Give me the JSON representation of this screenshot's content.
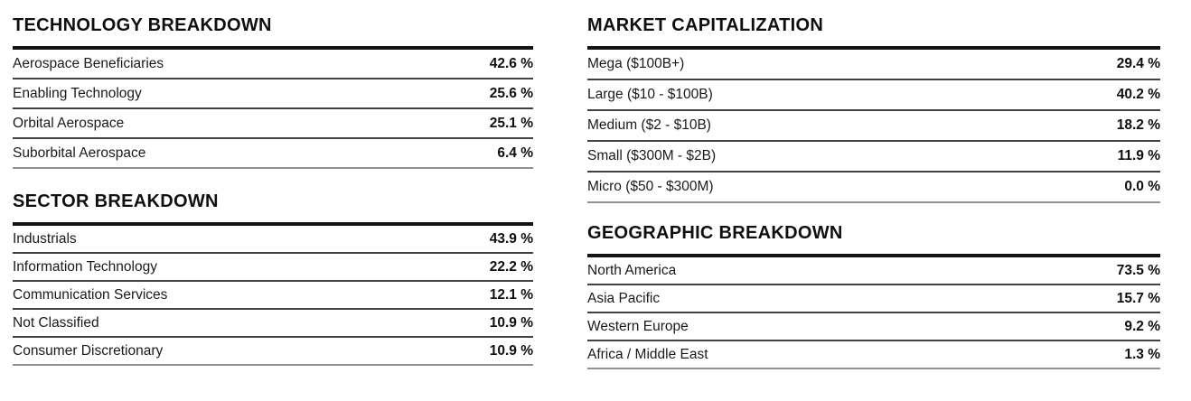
{
  "colors": {
    "background": "#ffffff",
    "title_text": "#0f0f0f",
    "heavy_rule": "#141414",
    "row_rule": "#424242",
    "end_rule": "#909090"
  },
  "tables": [
    {
      "id": "technology-breakdown",
      "title": "TECHNOLOGY BREAKDOWN",
      "rows": [
        {
          "label": "Aerospace Beneficiaries",
          "value": "42.6 %"
        },
        {
          "label": "Enabling Technology",
          "value": "25.6 %"
        },
        {
          "label": "Orbital Aerospace",
          "value": "25.1 %"
        },
        {
          "label": "Suborbital Aerospace",
          "value": "6.4 %"
        }
      ]
    },
    {
      "id": "sector-breakdown",
      "title": "SECTOR BREAKDOWN",
      "rows": [
        {
          "label": "Industrials",
          "value": "43.9 %"
        },
        {
          "label": "Information Technology",
          "value": "22.2 %"
        },
        {
          "label": "Communication Services",
          "value": "12.1 %"
        },
        {
          "label": "Not Classified",
          "value": "10.9 %"
        },
        {
          "label": "Consumer Discretionary",
          "value": "10.9 %"
        }
      ]
    },
    {
      "id": "market-capitalization",
      "title": "MARKET CAPITALIZATION",
      "rows": [
        {
          "label": "Mega ($100B+)",
          "value": "29.4 %"
        },
        {
          "label": "Large ($10 - $100B)",
          "value": "40.2 %"
        },
        {
          "label": "Medium ($2 - $10B)",
          "value": "18.2 %"
        },
        {
          "label": "Small ($300M - $2B)",
          "value": "11.9 %"
        },
        {
          "label": "Micro ($50 - $300M)",
          "value": "0.0 %"
        }
      ]
    },
    {
      "id": "geographic-breakdown",
      "title": "GEOGRAPHIC BREAKDOWN",
      "rows": [
        {
          "label": "North America",
          "value": "73.5 %"
        },
        {
          "label": "Asia Pacific",
          "value": "15.7 %"
        },
        {
          "label": "Western Europe",
          "value": "9.2 %"
        },
        {
          "label": "Africa / Middle East",
          "value": "1.3 %"
        }
      ]
    }
  ]
}
